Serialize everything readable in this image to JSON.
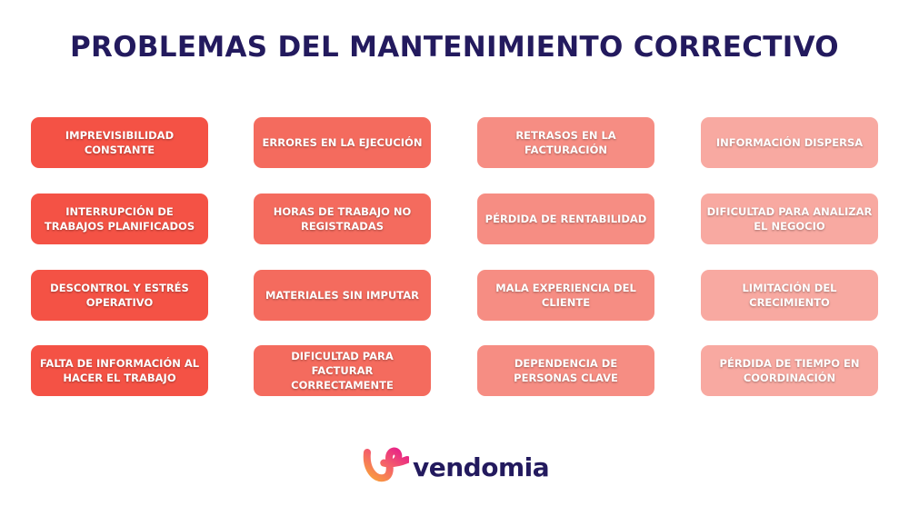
{
  "title": "PROBLEMAS DEL MANTENIMIENTO CORRECTIVO",
  "colors": {
    "title": "#231A5E",
    "columns": [
      "#F45245",
      "#F46B5E",
      "#F68D83",
      "#F8A9A1"
    ]
  },
  "columns": [
    {
      "items": [
        "IMPREVISIBILIDAD CONSTANTE",
        "INTERRUPCIÓN DE TRABAJOS PLANIFICADOS",
        "DESCONTROL Y ESTRÉS OPERATIVO",
        "FALTA DE INFORMACIÓN AL HACER EL TRABAJO"
      ]
    },
    {
      "items": [
        "ERRORES EN LA EJECUCIÓN",
        "HORAS DE TRABAJO NO REGISTRADAS",
        "MATERIALES SIN IMPUTAR",
        "DIFICULTAD PARA FACTURAR CORRECTAMENTE"
      ]
    },
    {
      "items": [
        "RETRASOS EN LA FACTURACIÓN",
        "PÉRDIDA DE RENTABILIDAD",
        "MALA EXPERIENCIA DEL CLIENTE",
        "DEPENDENCIA DE PERSONAS CLAVE"
      ]
    },
    {
      "items": [
        "INFORMACIÓN DISPERSA",
        "DIFICULTAD PARA ANALIZAR EL NEGOCIO",
        "LIMITACIÓN DEL CRECIMIENTO",
        "PÉRDIDA DE TIEMPO EN COORDINACIÓN"
      ]
    }
  ],
  "logo": {
    "text": "vendomia"
  }
}
